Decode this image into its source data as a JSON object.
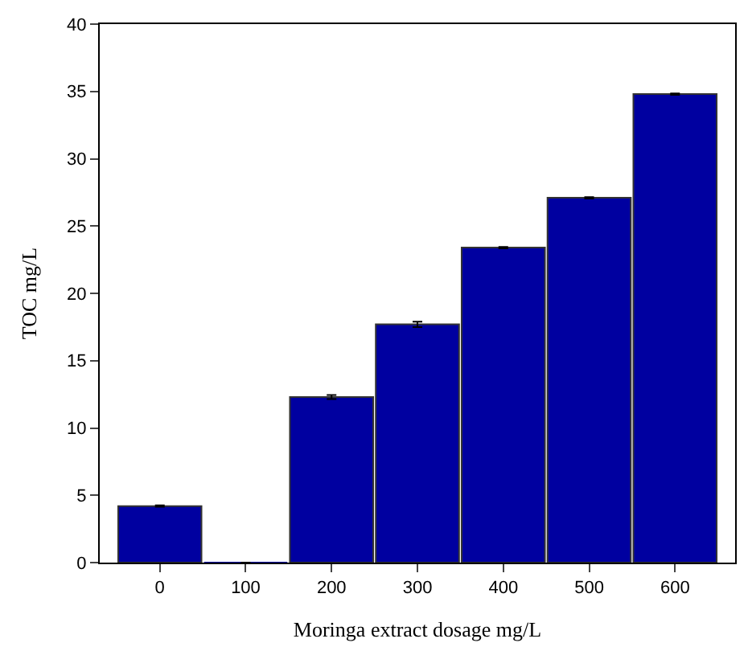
{
  "chart_data": {
    "type": "bar",
    "xlabel": "Moringa extract dosage mg/L",
    "ylabel": "TOC mg/L",
    "categories": [
      "0",
      "100",
      "200",
      "300",
      "400",
      "500",
      "600"
    ],
    "values": [
      4.2,
      0,
      12.3,
      17.7,
      23.4,
      27.1,
      34.8
    ],
    "errors": [
      0.05,
      null,
      0.15,
      0.2,
      0.05,
      0.05,
      0.05
    ],
    "color": "#0000a0",
    "ylim": [
      0,
      40
    ],
    "yticks": [
      0,
      5,
      10,
      15,
      20,
      25,
      30,
      35,
      40
    ],
    "legend": false
  }
}
